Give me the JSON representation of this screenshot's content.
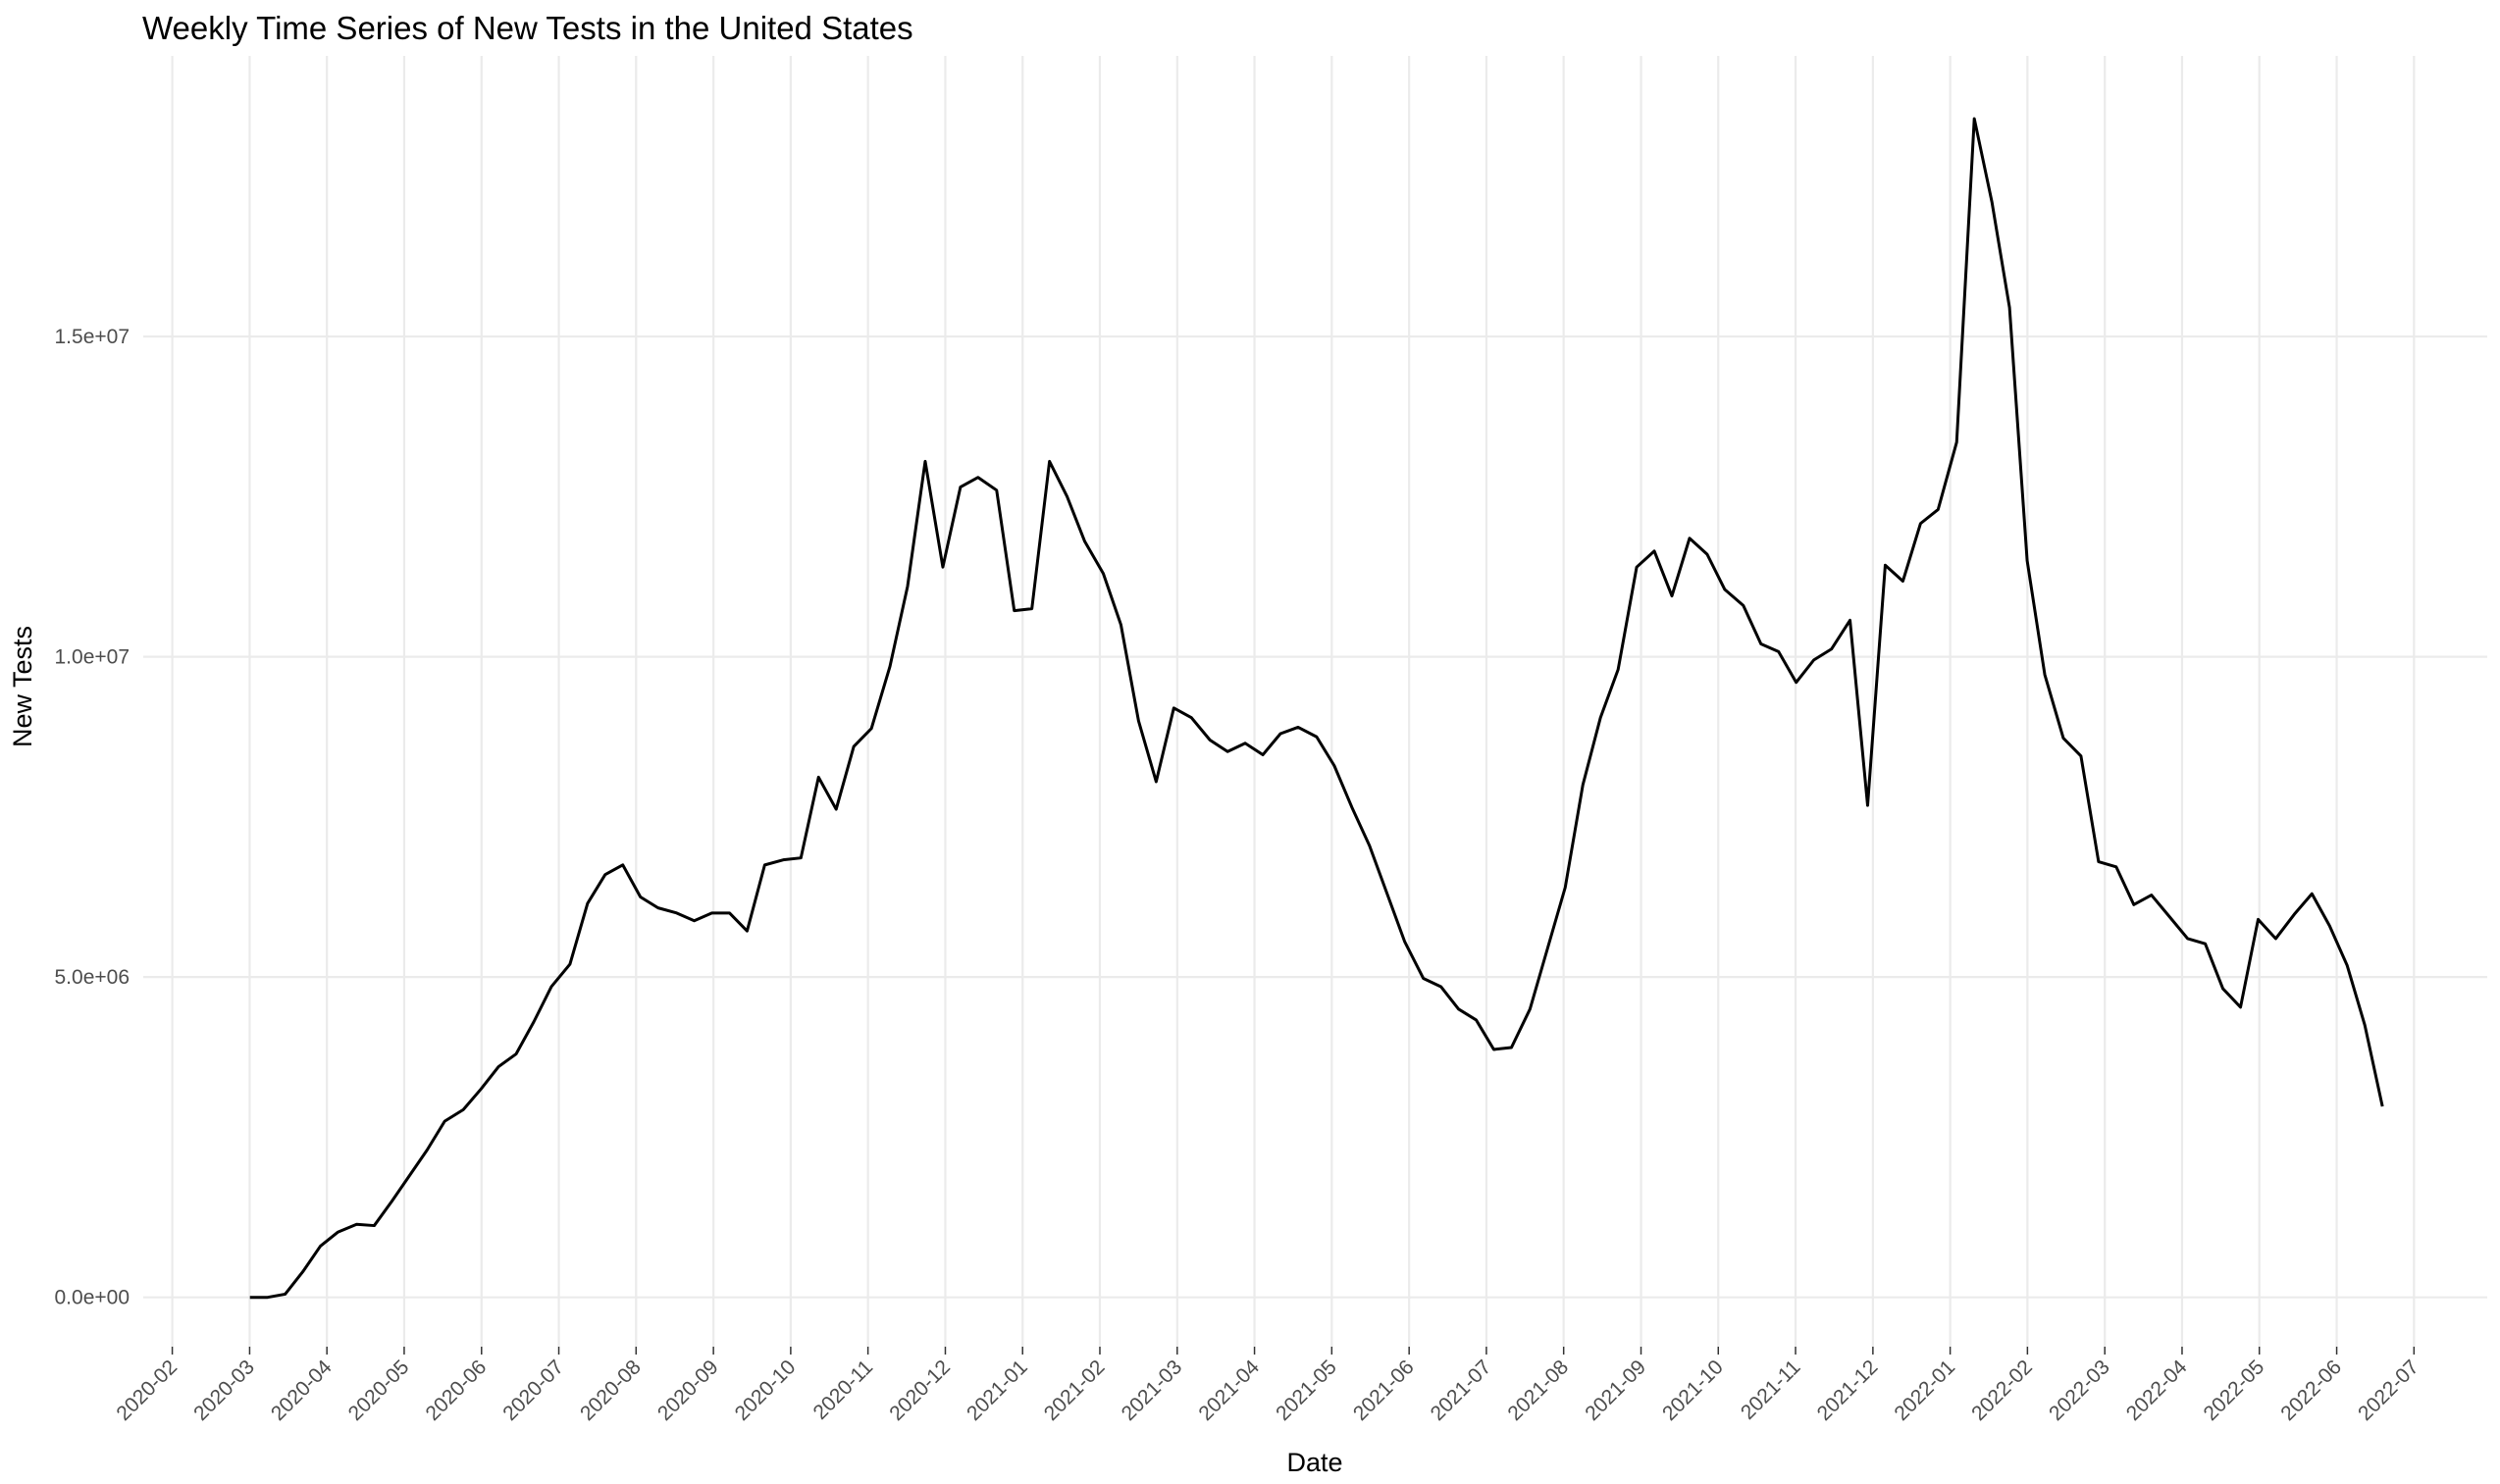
{
  "chart_data": {
    "type": "line",
    "title": "Weekly Time Series of New Tests in the United States",
    "x_label": "Date",
    "y_label": "New Tests",
    "x": [
      2020.167,
      2020.186,
      2020.205,
      2020.224,
      2020.243,
      2020.262,
      2020.282,
      2020.301,
      2020.32,
      2020.339,
      2020.358,
      2020.377,
      2020.397,
      2020.416,
      2020.435,
      2020.454,
      2020.473,
      2020.492,
      2020.512,
      2020.531,
      2020.55,
      2020.569,
      2020.588,
      2020.607,
      2020.627,
      2020.646,
      2020.665,
      2020.684,
      2020.703,
      2020.722,
      2020.742,
      2020.761,
      2020.78,
      2020.799,
      2020.818,
      2020.837,
      2020.857,
      2020.876,
      2020.895,
      2020.914,
      2020.933,
      2020.952,
      2020.972,
      2020.991,
      2021.01,
      2021.029,
      2021.048,
      2021.067,
      2021.087,
      2021.106,
      2021.125,
      2021.144,
      2021.163,
      2021.182,
      2021.202,
      2021.221,
      2021.24,
      2021.259,
      2021.278,
      2021.297,
      2021.317,
      2021.336,
      2021.355,
      2021.374,
      2021.393,
      2021.412,
      2021.432,
      2021.451,
      2021.47,
      2021.489,
      2021.508,
      2021.527,
      2021.547,
      2021.566,
      2021.585,
      2021.604,
      2021.623,
      2021.642,
      2021.662,
      2021.681,
      2021.7,
      2021.719,
      2021.738,
      2021.757,
      2021.777,
      2021.796,
      2021.815,
      2021.834,
      2021.853,
      2021.872,
      2021.892,
      2021.911,
      2021.93,
      2021.949,
      2021.968,
      2021.987,
      2022.007,
      2022.026,
      2022.045,
      2022.064,
      2022.083,
      2022.102,
      2022.122,
      2022.141,
      2022.16,
      2022.179,
      2022.198,
      2022.217,
      2022.236,
      2022.256,
      2022.275,
      2022.294,
      2022.313,
      2022.332,
      2022.351,
      2022.371,
      2022.39,
      2022.409,
      2022.428,
      2022.447,
      2022.466
    ],
    "series": [
      {
        "color": "#000000",
        "values": [
          0,
          0,
          50000,
          400000,
          800000,
          1020000,
          1140000,
          1120000,
          1500000,
          1900000,
          2300000,
          2750000,
          2930000,
          3250000,
          3600000,
          3800000,
          4300000,
          4850000,
          5200000,
          6150000,
          6600000,
          6750000,
          6250000,
          6080000,
          6000000,
          5880000,
          6000000,
          6000000,
          5720000,
          6750000,
          6830000,
          6860000,
          8120000,
          7620000,
          8600000,
          8880000,
          9850000,
          11100000,
          13050000,
          11400000,
          12650000,
          12800000,
          12600000,
          10720000,
          10750000,
          13050000,
          12500000,
          11800000,
          11300000,
          10500000,
          9000000,
          8050000,
          9200000,
          9050000,
          8700000,
          8520000,
          8650000,
          8470000,
          8800000,
          8900000,
          8750000,
          8300000,
          7650000,
          7050000,
          6300000,
          5550000,
          4980000,
          4850000,
          4500000,
          4330000,
          3870000,
          3900000,
          4500000,
          5450000,
          6400000,
          8000000,
          9050000,
          9800000,
          11400000,
          11650000,
          10950000,
          11850000,
          11600000,
          11050000,
          10800000,
          10200000,
          10080000,
          9600000,
          9950000,
          10120000,
          10570000,
          7680000,
          11430000,
          11180000,
          12080000,
          12300000,
          13350000,
          18400000,
          17100000,
          15450000,
          11500000,
          9720000,
          8730000,
          8450000,
          6800000,
          6720000,
          6130000,
          6280000,
          5950000,
          5600000,
          5520000,
          4820000,
          4530000,
          5900000,
          5600000,
          5980000,
          6300000,
          5800000,
          5180000,
          4250000,
          2980000
        ]
      }
    ],
    "xlim": [
      2020.052,
      2022.579
    ],
    "xticks": [
      {
        "value": 2020.0833,
        "label": "2020-02"
      },
      {
        "value": 2020.1667,
        "label": "2020-03"
      },
      {
        "value": 2020.25,
        "label": "2020-04"
      },
      {
        "value": 2020.3333,
        "label": "2020-05"
      },
      {
        "value": 2020.4167,
        "label": "2020-06"
      },
      {
        "value": 2020.5,
        "label": "2020-07"
      },
      {
        "value": 2020.5833,
        "label": "2020-08"
      },
      {
        "value": 2020.6667,
        "label": "2020-09"
      },
      {
        "value": 2020.75,
        "label": "2020-10"
      },
      {
        "value": 2020.8333,
        "label": "2020-11"
      },
      {
        "value": 2020.9167,
        "label": "2020-12"
      },
      {
        "value": 2021.0,
        "label": "2021-01"
      },
      {
        "value": 2021.0833,
        "label": "2021-02"
      },
      {
        "value": 2021.1667,
        "label": "2021-03"
      },
      {
        "value": 2021.25,
        "label": "2021-04"
      },
      {
        "value": 2021.3333,
        "label": "2021-05"
      },
      {
        "value": 2021.4167,
        "label": "2021-06"
      },
      {
        "value": 2021.5,
        "label": "2021-07"
      },
      {
        "value": 2021.5833,
        "label": "2021-08"
      },
      {
        "value": 2021.6667,
        "label": "2021-09"
      },
      {
        "value": 2021.75,
        "label": "2021-10"
      },
      {
        "value": 2021.8333,
        "label": "2021-11"
      },
      {
        "value": 2021.9167,
        "label": "2021-12"
      },
      {
        "value": 2022.0,
        "label": "2022-01"
      },
      {
        "value": 2022.0833,
        "label": "2022-02"
      },
      {
        "value": 2022.1667,
        "label": "2022-03"
      },
      {
        "value": 2022.25,
        "label": "2022-04"
      },
      {
        "value": 2022.3333,
        "label": "2022-05"
      },
      {
        "value": 2022.4167,
        "label": "2022-06"
      },
      {
        "value": 2022.5,
        "label": "2022-07"
      }
    ],
    "ylim": [
      -770000,
      19380000
    ],
    "yticks": [
      {
        "value": 0,
        "label": "0.0e+00"
      },
      {
        "value": 5000000,
        "label": "5.0e+06"
      },
      {
        "value": 10000000,
        "label": "1.0e+07"
      },
      {
        "value": 15000000,
        "label": "1.5e+07"
      }
    ],
    "grid": true
  }
}
